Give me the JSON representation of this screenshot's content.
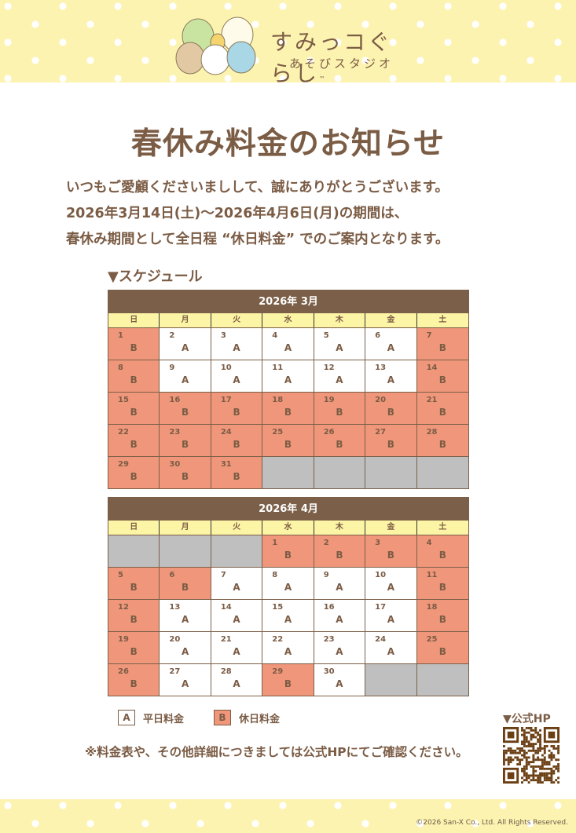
{
  "header": {
    "logo_title": "すみっコぐらし",
    "logo_tm": "™",
    "logo_sub": "あそびスタジオ"
  },
  "title": "春休み料金のお知らせ",
  "intro": [
    "いつもご愛顧くださいましして、誠にありがとうございます。",
    "2026年3月14日(土)～2026年4月6日(月)の期間は、",
    "春休み期間として全日程 “休日料金” でのご案内となります。"
  ],
  "schedule_label": "▼スケジュール",
  "weekdays": [
    "日",
    "月",
    "火",
    "水",
    "木",
    "金",
    "土"
  ],
  "calendars": [
    {
      "title": "2026年 3月",
      "cells": [
        [
          "1",
          "B"
        ],
        [
          "2",
          "A"
        ],
        [
          "3",
          "A"
        ],
        [
          "4",
          "A"
        ],
        [
          "5",
          "A"
        ],
        [
          "6",
          "A"
        ],
        [
          "7",
          "B"
        ],
        [
          "8",
          "B"
        ],
        [
          "9",
          "A"
        ],
        [
          "10",
          "A"
        ],
        [
          "11",
          "A"
        ],
        [
          "12",
          "A"
        ],
        [
          "13",
          "A"
        ],
        [
          "14",
          "B"
        ],
        [
          "15",
          "B"
        ],
        [
          "16",
          "B"
        ],
        [
          "17",
          "B"
        ],
        [
          "18",
          "B"
        ],
        [
          "19",
          "B"
        ],
        [
          "20",
          "B"
        ],
        [
          "21",
          "B"
        ],
        [
          "22",
          "B"
        ],
        [
          "23",
          "B"
        ],
        [
          "24",
          "B"
        ],
        [
          "25",
          "B"
        ],
        [
          "26",
          "B"
        ],
        [
          "27",
          "B"
        ],
        [
          "28",
          "B"
        ],
        [
          "29",
          "B"
        ],
        [
          "30",
          "B"
        ],
        [
          "31",
          "B"
        ],
        null,
        null,
        null,
        null
      ]
    },
    {
      "title": "2026年 4月",
      "cells": [
        null,
        null,
        null,
        [
          "1",
          "B"
        ],
        [
          "2",
          "B"
        ],
        [
          "3",
          "B"
        ],
        [
          "4",
          "B"
        ],
        [
          "5",
          "B"
        ],
        [
          "6",
          "B"
        ],
        [
          "7",
          "A"
        ],
        [
          "8",
          "A"
        ],
        [
          "9",
          "A"
        ],
        [
          "10",
          "A"
        ],
        [
          "11",
          "B"
        ],
        [
          "12",
          "B"
        ],
        [
          "13",
          "A"
        ],
        [
          "14",
          "A"
        ],
        [
          "15",
          "A"
        ],
        [
          "16",
          "A"
        ],
        [
          "17",
          "A"
        ],
        [
          "18",
          "B"
        ],
        [
          "19",
          "B"
        ],
        [
          "20",
          "A"
        ],
        [
          "21",
          "A"
        ],
        [
          "22",
          "A"
        ],
        [
          "23",
          "A"
        ],
        [
          "24",
          "A"
        ],
        [
          "25",
          "B"
        ],
        [
          "26",
          "B"
        ],
        [
          "27",
          "A"
        ],
        [
          "28",
          "A"
        ],
        [
          "29",
          "B"
        ],
        [
          "30",
          "A"
        ],
        null,
        null
      ]
    }
  ],
  "legend": [
    {
      "key": "A",
      "label": "平日料金",
      "color": "#ffffff"
    },
    {
      "key": "B",
      "label": "休日料金",
      "color": "#f0977b"
    }
  ],
  "note": "※料金表や、その他詳細につきましては公式HPにてご確認ください。",
  "hp_label": "▼公式HP",
  "copyright": "©2026 San-X Co., Ltd. All Rights Reserved.",
  "colors": {
    "brown": "#7b5f48",
    "weekday_bg": "#fdf5a6",
    "holiday": "#f0977b",
    "empty": "#bfbfbf",
    "band": "#fdf3b0"
  }
}
